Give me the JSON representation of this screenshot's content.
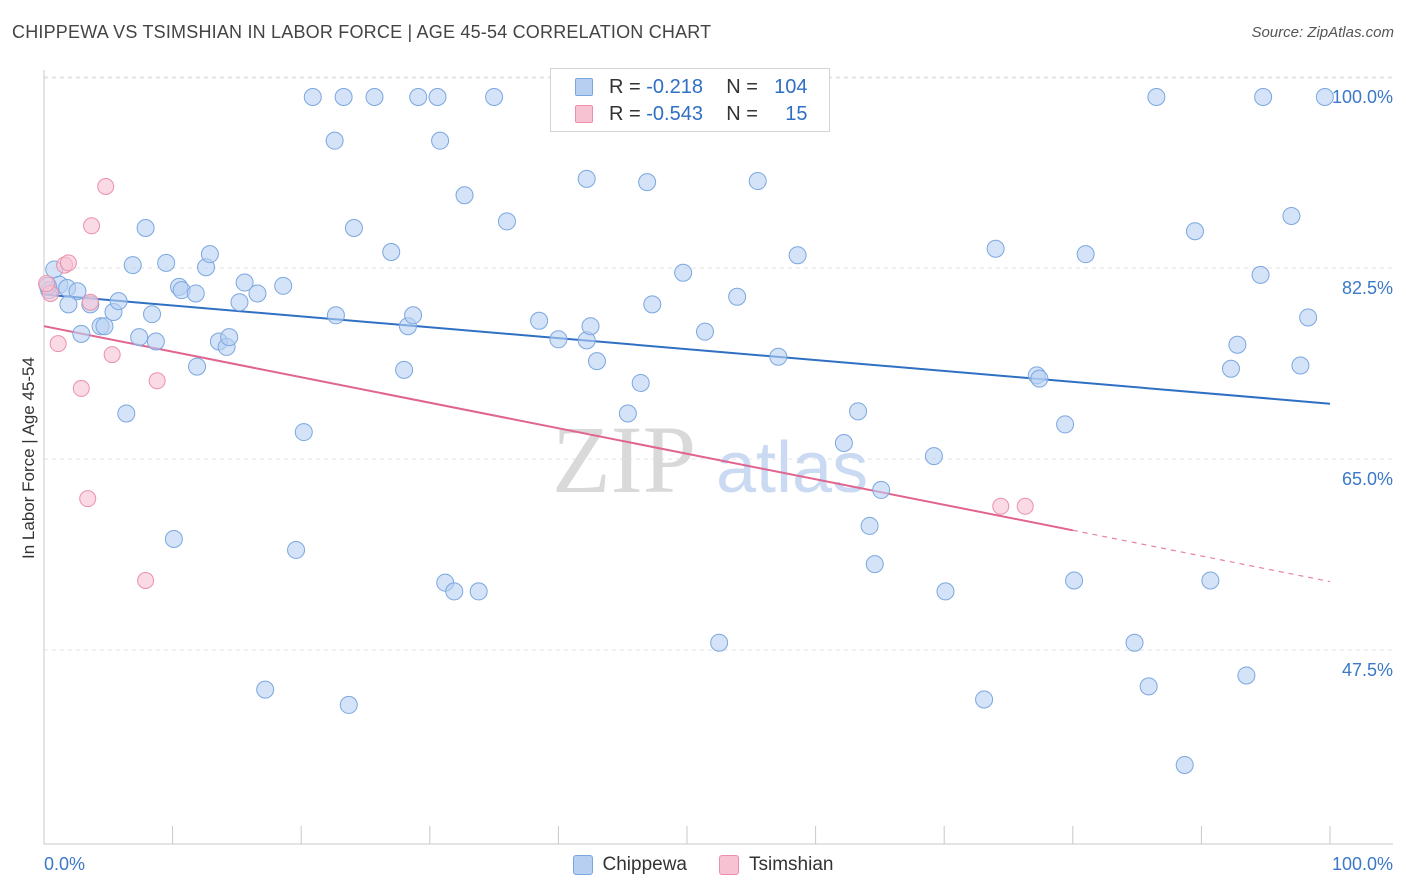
{
  "title": "CHIPPEWA VS TSIMSHIAN IN LABOR FORCE | AGE 45-54 CORRELATION CHART",
  "source": "Source: ZipAtlas.com",
  "watermark": {
    "zip": "ZIP",
    "atlas": "atlas"
  },
  "legend": {
    "chippewa": {
      "r_label": "R =",
      "r_value": "-0.218",
      "n_label": "N =",
      "n_value": "104"
    },
    "tsimshian": {
      "r_label": "R =",
      "r_value": "-0.543",
      "n_label": "N =",
      "n_value": "15"
    }
  },
  "colors": {
    "chippewa_fill": "#b7d0f2",
    "chippewa_stroke": "#7ba7e0",
    "chippewa_line": "#2f6fc4",
    "tsimshian_fill": "#f7c3d3",
    "tsimshian_stroke": "#ec8fab",
    "tsimshian_line": "#e0648f",
    "tick_label": "#3b78c8"
  },
  "chart_data": {
    "type": "scatter",
    "title": "CHIPPEWA VS TSIMSHIAN IN LABOR FORCE | AGE 45-54 CORRELATION CHART",
    "xlabel": "",
    "ylabel": "In Labor Force | Age 45-54",
    "xlim": [
      0,
      100
    ],
    "ylim": [
      30.5,
      102
    ],
    "x_tick_labels": [
      "0.0%",
      "100.0%"
    ],
    "y_ticks": [
      100.0,
      82.5,
      65.0,
      47.5
    ],
    "y_tick_labels": [
      "100.0%",
      "82.5%",
      "65.0%",
      "47.5%"
    ],
    "series": [
      {
        "name": "Chippewa",
        "trend": {
          "x": [
            0,
            100
          ],
          "y": [
            81.9,
            71.9
          ]
        },
        "points": [
          [
            0.4,
            82.3
          ],
          [
            0.8,
            84.2
          ],
          [
            1.2,
            82.8
          ],
          [
            1.8,
            82.5
          ],
          [
            2.6,
            82.2
          ],
          [
            1.9,
            81.0
          ],
          [
            2.9,
            78.3
          ],
          [
            3.6,
            81.0
          ],
          [
            4.4,
            79.0
          ],
          [
            4.7,
            79.0
          ],
          [
            5.4,
            80.3
          ],
          [
            5.8,
            81.3
          ],
          [
            6.4,
            71.0
          ],
          [
            6.9,
            84.6
          ],
          [
            7.4,
            78.0
          ],
          [
            7.9,
            88.0
          ],
          [
            8.4,
            80.1
          ],
          [
            8.7,
            77.6
          ],
          [
            9.5,
            84.8
          ],
          [
            10.1,
            59.5
          ],
          [
            10.5,
            82.6
          ],
          [
            10.7,
            82.3
          ],
          [
            11.8,
            82.0
          ],
          [
            11.9,
            75.3
          ],
          [
            12.6,
            84.4
          ],
          [
            12.9,
            85.6
          ],
          [
            13.6,
            77.6
          ],
          [
            14.2,
            77.1
          ],
          [
            14.4,
            78.0
          ],
          [
            15.2,
            81.2
          ],
          [
            15.6,
            83.0
          ],
          [
            16.6,
            82.0
          ],
          [
            17.2,
            45.7
          ],
          [
            18.6,
            82.7
          ],
          [
            19.6,
            58.5
          ],
          [
            20.2,
            69.3
          ],
          [
            20.9,
            100.0
          ],
          [
            22.6,
            96.0
          ],
          [
            22.7,
            80.0
          ],
          [
            23.3,
            100.0
          ],
          [
            23.7,
            44.3
          ],
          [
            24.1,
            88.0
          ],
          [
            25.7,
            100.0
          ],
          [
            27.0,
            85.8
          ],
          [
            28.0,
            75.0
          ],
          [
            28.3,
            79.0
          ],
          [
            28.7,
            80.0
          ],
          [
            29.1,
            100.0
          ],
          [
            30.6,
            100.0
          ],
          [
            30.8,
            96.0
          ],
          [
            31.2,
            55.5
          ],
          [
            31.9,
            54.7
          ],
          [
            32.7,
            91.0
          ],
          [
            33.8,
            54.7
          ],
          [
            35.0,
            100.0
          ],
          [
            36.0,
            88.6
          ],
          [
            38.5,
            79.5
          ],
          [
            40.0,
            77.8
          ],
          [
            42.2,
            92.5
          ],
          [
            42.2,
            77.7
          ],
          [
            42.5,
            79.0
          ],
          [
            43.0,
            75.8
          ],
          [
            43.2,
            100.0
          ],
          [
            45.4,
            71.0
          ],
          [
            46.4,
            73.8
          ],
          [
            46.9,
            92.2
          ],
          [
            47.3,
            81.0
          ],
          [
            49.7,
            83.9
          ],
          [
            51.4,
            78.5
          ],
          [
            52.5,
            50.0
          ],
          [
            53.9,
            81.7
          ],
          [
            55.5,
            92.3
          ],
          [
            57.1,
            76.2
          ],
          [
            58.6,
            85.5
          ],
          [
            62.2,
            68.3
          ],
          [
            63.3,
            71.2
          ],
          [
            64.2,
            60.7
          ],
          [
            64.6,
            57.2
          ],
          [
            65.1,
            64.0
          ],
          [
            69.2,
            67.1
          ],
          [
            70.1,
            54.7
          ],
          [
            73.1,
            44.8
          ],
          [
            74.0,
            86.1
          ],
          [
            77.2,
            74.5
          ],
          [
            77.4,
            74.2
          ],
          [
            79.4,
            70.0
          ],
          [
            80.1,
            55.7
          ],
          [
            81.0,
            85.6
          ],
          [
            84.8,
            50.0
          ],
          [
            85.9,
            46.0
          ],
          [
            86.5,
            100.0
          ],
          [
            88.7,
            38.8
          ],
          [
            89.5,
            87.7
          ],
          [
            90.7,
            55.7
          ],
          [
            92.3,
            75.1
          ],
          [
            92.8,
            77.3
          ],
          [
            93.5,
            47.0
          ],
          [
            94.6,
            83.7
          ],
          [
            94.8,
            100.0
          ],
          [
            97.0,
            89.1
          ],
          [
            97.7,
            75.4
          ],
          [
            98.3,
            79.8
          ],
          [
            99.6,
            100.0
          ],
          [
            0.3,
            82.7
          ]
        ]
      },
      {
        "name": "Tsimshian",
        "trend": {
          "x": [
            0,
            80
          ],
          "y": [
            79.0,
            60.3
          ]
        },
        "trend_dashed": {
          "x": [
            80,
            100
          ],
          "y": [
            60.3,
            55.6
          ]
        },
        "points": [
          [
            0.5,
            82.0
          ],
          [
            1.1,
            77.4
          ],
          [
            1.6,
            84.6
          ],
          [
            1.9,
            84.8
          ],
          [
            2.9,
            73.3
          ],
          [
            3.4,
            63.2
          ],
          [
            3.6,
            81.2
          ],
          [
            3.7,
            88.2
          ],
          [
            4.8,
            91.8
          ],
          [
            5.3,
            76.4
          ],
          [
            7.9,
            55.7
          ],
          [
            8.8,
            74.0
          ],
          [
            74.4,
            62.5
          ],
          [
            76.3,
            62.5
          ],
          [
            0.2,
            82.9
          ]
        ]
      }
    ],
    "legend": [
      "Chippewa",
      "Tsimshian"
    ]
  }
}
